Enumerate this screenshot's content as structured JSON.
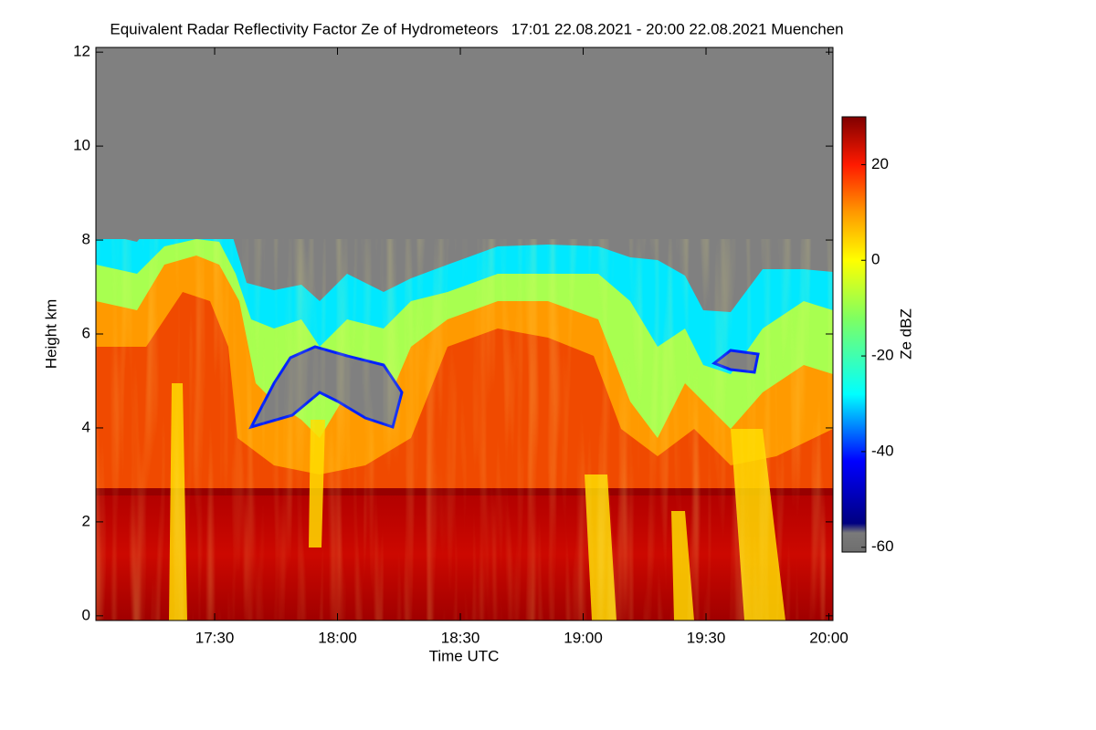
{
  "chart_data": {
    "type": "heatmap",
    "title": "Equivalent Radar Reflectivity Factor Ze of Hydrometeors   17:01 22.08.2021 - 20:00 22.08.2021 Muenchen",
    "x_label": "Time UTC",
    "y_label": "Height km",
    "xlim": [
      "17:01",
      "20:01"
    ],
    "xticks": [
      "17:30",
      "18:00",
      "18:30",
      "19:00",
      "19:30",
      "20:00"
    ],
    "ylim": [
      -0.1,
      12.1
    ],
    "yticks": [
      0,
      2,
      4,
      6,
      8,
      10,
      12
    ],
    "colorbar": {
      "label": "Ze dBZ",
      "lim": [
        -61,
        30
      ],
      "ticks": [
        -60,
        -40,
        -20,
        0,
        20
      ],
      "stops": [
        {
          "value": -61,
          "color": "#6e6e6e"
        },
        {
          "value": -57,
          "color": "#7a7a7a"
        },
        {
          "value": -55,
          "color": "#000080"
        },
        {
          "value": -42,
          "color": "#0000ff"
        },
        {
          "value": -28,
          "color": "#00ffff"
        },
        {
          "value": -12,
          "color": "#80ff60"
        },
        {
          "value": 0,
          "color": "#ffff00"
        },
        {
          "value": 10,
          "color": "#ff9900"
        },
        {
          "value": 20,
          "color": "#ff1a00"
        },
        {
          "value": 30,
          "color": "#800000"
        }
      ]
    }
  }
}
